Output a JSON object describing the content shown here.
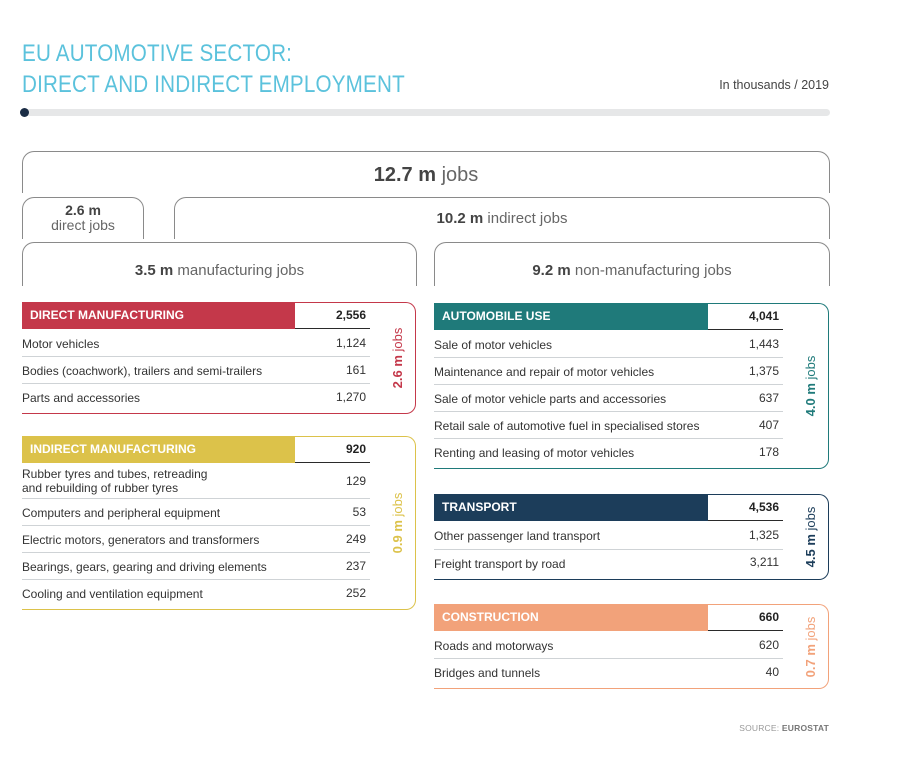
{
  "title_line1": "EU AUTOMOTIVE SECTOR:",
  "title_line2": "DIRECT AND INDIRECT EMPLOYMENT",
  "unit_note": "In thousands / 2019",
  "source_label": "SOURCE:",
  "source_name": "EUROSTAT",
  "jobs_word": "jobs",
  "brackets": {
    "total": {
      "value": "12.7 m",
      "text": "jobs"
    },
    "direct": {
      "value": "2.6 m",
      "text": "direct jobs"
    },
    "indirect": {
      "value": "10.2 m",
      "text": "indirect jobs"
    },
    "manufacturing": {
      "value": "3.5 m",
      "text": "manufacturing jobs"
    },
    "non_manufacturing": {
      "value": "9.2 m",
      "text": "non-manufacturing jobs"
    }
  },
  "colors": {
    "direct_manufacturing": "#c4384a",
    "indirect_manufacturing": "#dcc24a",
    "automobile_use": "#1f7a7a",
    "transport": "#1c3d5a",
    "construction": "#f2a27a"
  },
  "chart_data": {
    "type": "table",
    "unit": "thousands",
    "year": "2019",
    "groups": [
      {
        "name": "DIRECT MANUFACTURING",
        "total": 2556,
        "side_label": "2.6 m",
        "rows": [
          {
            "label": "Motor vehicles",
            "value": 1124
          },
          {
            "label": "Bodies (coachwork), trailers and semi-trailers",
            "value": 161
          },
          {
            "label": "Parts and accessories",
            "value": 1270
          }
        ]
      },
      {
        "name": "INDIRECT MANUFACTURING",
        "total": 920,
        "side_label": "0.9 m",
        "rows": [
          {
            "label": "Rubber tyres and tubes, retreading",
            "label2": "and rebuilding of rubber tyres",
            "value": 129
          },
          {
            "label": "Computers and peripheral equipment",
            "value": 53
          },
          {
            "label": "Electric motors, generators and transformers",
            "value": 249
          },
          {
            "label": "Bearings, gears, gearing and driving elements",
            "value": 237
          },
          {
            "label": "Cooling and ventilation equipment",
            "value": 252
          }
        ]
      },
      {
        "name": "AUTOMOBILE USE",
        "total": 4041,
        "side_label": "4.0 m",
        "rows": [
          {
            "label": "Sale of motor vehicles",
            "value": 1443
          },
          {
            "label": "Maintenance and repair of motor vehicles",
            "value": 1375
          },
          {
            "label": "Sale of motor vehicle parts and accessories",
            "value": 637
          },
          {
            "label": "Retail sale of automotive fuel in specialised stores",
            "value": 407
          },
          {
            "label": "Renting and leasing of motor vehicles",
            "value": 178
          }
        ]
      },
      {
        "name": "TRANSPORT",
        "total": 4536,
        "side_label": "4.5 m",
        "rows": [
          {
            "label": "Other passenger land transport",
            "value": 1325
          },
          {
            "label": "Freight transport by road",
            "value": 3211
          }
        ]
      },
      {
        "name": "CONSTRUCTION",
        "total": 660,
        "side_label": "0.7 m",
        "rows": [
          {
            "label": "Roads and motorways",
            "value": 620
          },
          {
            "label": "Bridges and tunnels",
            "value": 40
          }
        ]
      }
    ]
  }
}
